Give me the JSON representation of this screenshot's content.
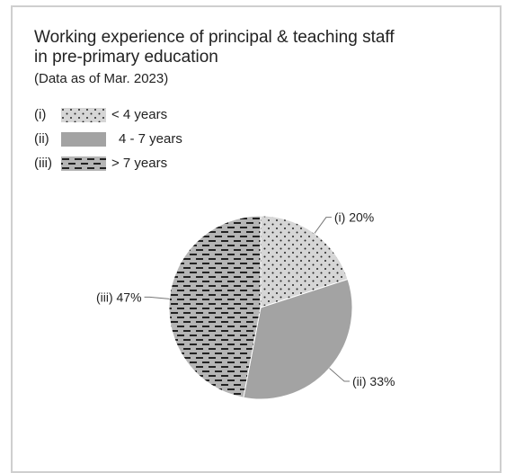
{
  "chart_data": {
    "type": "pie",
    "title": "Working experience of principal & teaching staff in pre-primary education",
    "title_lines": [
      "Working experience of principal & teaching staff",
      "in pre-primary education"
    ],
    "subtitle": "(Data as of Mar. 2023)",
    "legend": [
      {
        "key": "(i)",
        "label": "< 4 years",
        "pattern": "dots"
      },
      {
        "key": "(ii)",
        "label": "4 - 7 years",
        "pattern": "solid"
      },
      {
        "key": "(iii)",
        "label": "> 7 years",
        "pattern": "dashes"
      }
    ],
    "slices": [
      {
        "key": "(i)",
        "value": 20,
        "label": "(i) 20%",
        "pattern": "dots",
        "color": "#d6d6d6"
      },
      {
        "key": "(ii)",
        "value": 33,
        "label": "(ii) 33%",
        "pattern": "solid",
        "color": "#a3a3a3"
      },
      {
        "key": "(iii)",
        "value": 47,
        "label": "(iii) 47%",
        "pattern": "dashes",
        "color": "#b5b5b5"
      }
    ]
  }
}
